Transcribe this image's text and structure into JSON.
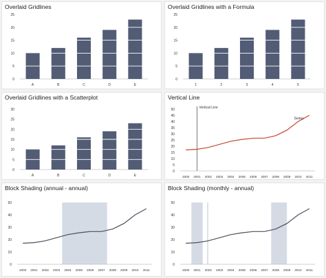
{
  "colors": {
    "bar": "#525c75",
    "gridline": "#ffffff",
    "formula_line": "#c8462a",
    "shade": "#d4dbe5",
    "line": "#4a4f5c",
    "axis": "#bfbfbf",
    "vline": "#555555",
    "text": "#333333"
  },
  "chart_data": [
    {
      "id": "p1",
      "type": "bar",
      "title": "Overlaid Gridlines",
      "categories": [
        "A",
        "B",
        "C",
        "D",
        "E"
      ],
      "values": [
        10,
        12,
        16,
        19,
        23
      ],
      "ylim": [
        0,
        25
      ],
      "yticks": [
        0,
        5,
        10,
        15,
        20,
        25
      ],
      "overlaid_gridlines": [
        5,
        10,
        15,
        20
      ],
      "grid": false,
      "xlabel": "",
      "ylabel": ""
    },
    {
      "id": "p2",
      "type": "bar",
      "title": "Overlaid Gridlines with a Formula",
      "categories": [
        "1",
        "2",
        "3",
        "4",
        "5"
      ],
      "values": [
        10,
        12,
        16,
        19,
        23
      ],
      "ylim": [
        0,
        25
      ],
      "yticks": [
        0,
        5,
        10,
        15,
        20,
        25
      ],
      "overlaid_gridlines": [
        5,
        10,
        15,
        20
      ],
      "grid": false,
      "xlabel": "",
      "ylabel": ""
    },
    {
      "id": "p3",
      "type": "bar",
      "title": "Overlaid Gridlines with a Scatterplot",
      "categories": [
        "A",
        "B",
        "C",
        "D",
        "E"
      ],
      "values": [
        10,
        12,
        16,
        19,
        23
      ],
      "ylim": [
        0,
        30
      ],
      "yticks": [
        0,
        5,
        10,
        15,
        20,
        25,
        30
      ],
      "overlaid_gridlines": [
        5,
        10,
        15,
        20
      ],
      "grid": false,
      "xlabel": "",
      "ylabel": ""
    },
    {
      "id": "p4",
      "type": "line",
      "title": "Vertical Line",
      "x": [
        "2000",
        "2001",
        "2002",
        "2003",
        "2004",
        "2005",
        "2006",
        "2007",
        "2008",
        "2009",
        "2010",
        "2011"
      ],
      "values": [
        17,
        17.5,
        19,
        21.5,
        24,
        25.5,
        26.5,
        26.5,
        28.5,
        33,
        40,
        45
      ],
      "ylim": [
        0,
        50
      ],
      "yticks": [
        0,
        5,
        10,
        15,
        20,
        25,
        30,
        35,
        40,
        45,
        50
      ],
      "vertical_line_at": "2001",
      "vertical_line_label": "Vertical Line",
      "series_label": "Series",
      "grid": false,
      "xlabel": "",
      "ylabel": ""
    },
    {
      "id": "p5",
      "type": "line",
      "title": "Block Shading (annual - annual)",
      "x": [
        "2000",
        "2001",
        "2002",
        "2003",
        "2004",
        "2005",
        "2006",
        "2007",
        "2008",
        "2009",
        "2010",
        "2011"
      ],
      "values": [
        17,
        17.5,
        19,
        21.5,
        24,
        25.5,
        26.5,
        26.5,
        28.5,
        33,
        40,
        45
      ],
      "ylim": [
        0,
        50
      ],
      "yticks": [
        0,
        10,
        20,
        30,
        40,
        50
      ],
      "shaded_ranges": [
        [
          "2003.5",
          "2007.5"
        ]
      ],
      "grid": false,
      "xlabel": "",
      "ylabel": ""
    },
    {
      "id": "p6",
      "type": "line",
      "title": "Block Shading (monthly - annual)",
      "x": [
        "2000",
        "2001",
        "2002",
        "2003",
        "2004",
        "2005",
        "2006",
        "2007",
        "2008",
        "2009",
        "2010",
        "2011"
      ],
      "values": [
        17,
        17.5,
        19,
        21.5,
        24,
        25.5,
        26.5,
        26.5,
        28.5,
        33,
        40,
        45
      ],
      "ylim": [
        0,
        50
      ],
      "yticks": [
        0,
        10,
        20,
        30,
        40,
        50
      ],
      "shaded_ranges": [
        [
          "2000.5",
          "2001.5"
        ],
        [
          "2001.9",
          "2002.0"
        ],
        [
          "2007.6",
          "2009.0"
        ]
      ],
      "grid": false,
      "xlabel": "",
      "ylabel": ""
    }
  ]
}
